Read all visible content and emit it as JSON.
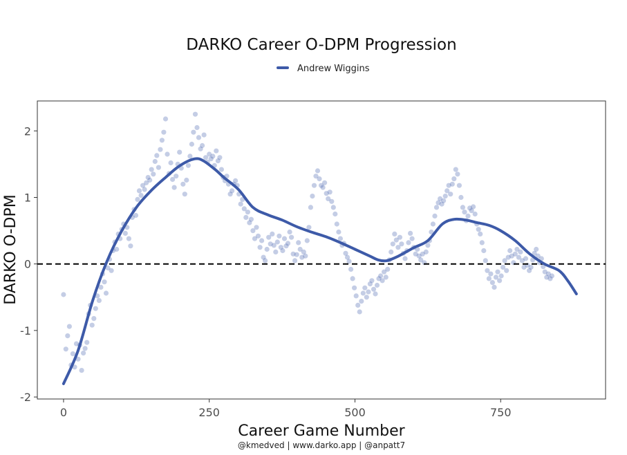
{
  "chart_data": {
    "type": "scatter",
    "title": "DARKO Career O-DPM Progression",
    "xlabel": "Career Game Number",
    "ylabel": "DARKO O-DPM",
    "caption": "@kmedved | www.darko.app | @anpatt7",
    "xlim": [
      -45,
      930
    ],
    "ylim": [
      -2.03,
      2.45
    ],
    "x_ticks": [
      0,
      250,
      500,
      750
    ],
    "x_tick_labels": [
      "0",
      "250",
      "500",
      "750"
    ],
    "y_ticks": [
      -2,
      -1,
      0,
      1,
      2
    ],
    "y_tick_labels": [
      "-2",
      "-1",
      "0",
      "1",
      "2"
    ],
    "reference_line": {
      "y": 0,
      "style": "dashed"
    },
    "grid": false,
    "legend": {
      "placement": "top-center"
    },
    "color": "#3d5aa8",
    "series": [
      {
        "name": "Andrew Wiggins",
        "smooth": [
          [
            0,
            -1.8
          ],
          [
            25,
            -1.3
          ],
          [
            50,
            -0.55
          ],
          [
            75,
            0.05
          ],
          [
            100,
            0.5
          ],
          [
            125,
            0.85
          ],
          [
            150,
            1.1
          ],
          [
            175,
            1.3
          ],
          [
            200,
            1.48
          ],
          [
            225,
            1.58
          ],
          [
            240,
            1.55
          ],
          [
            260,
            1.42
          ],
          [
            275,
            1.3
          ],
          [
            300,
            1.12
          ],
          [
            325,
            0.85
          ],
          [
            350,
            0.74
          ],
          [
            375,
            0.66
          ],
          [
            400,
            0.56
          ],
          [
            425,
            0.48
          ],
          [
            450,
            0.41
          ],
          [
            475,
            0.32
          ],
          [
            500,
            0.22
          ],
          [
            525,
            0.12
          ],
          [
            540,
            0.06
          ],
          [
            555,
            0.05
          ],
          [
            575,
            0.12
          ],
          [
            600,
            0.24
          ],
          [
            625,
            0.35
          ],
          [
            650,
            0.6
          ],
          [
            670,
            0.67
          ],
          [
            690,
            0.66
          ],
          [
            710,
            0.62
          ],
          [
            730,
            0.58
          ],
          [
            750,
            0.5
          ],
          [
            775,
            0.35
          ],
          [
            800,
            0.15
          ],
          [
            825,
            0.0
          ],
          [
            850,
            -0.1
          ],
          [
            865,
            -0.25
          ],
          [
            880,
            -0.45
          ]
        ],
        "points": [
          [
            0,
            -0.46
          ],
          [
            4,
            -1.28
          ],
          [
            7,
            -1.08
          ],
          [
            10,
            -0.94
          ],
          [
            13,
            -1.52
          ],
          [
            16,
            -1.35
          ],
          [
            19,
            -1.55
          ],
          [
            22,
            -1.2
          ],
          [
            25,
            -1.43
          ],
          [
            28,
            -1.22
          ],
          [
            31,
            -1.6
          ],
          [
            34,
            -1.34
          ],
          [
            37,
            -1.27
          ],
          [
            40,
            -1.18
          ],
          [
            43,
            -0.75
          ],
          [
            46,
            -0.62
          ],
          [
            49,
            -0.92
          ],
          [
            52,
            -0.82
          ],
          [
            55,
            -0.67
          ],
          [
            58,
            -0.48
          ],
          [
            61,
            -0.55
          ],
          [
            64,
            -0.35
          ],
          [
            67,
            -0.15
          ],
          [
            70,
            -0.27
          ],
          [
            73,
            -0.44
          ],
          [
            76,
            -0.06
          ],
          [
            79,
            0.07
          ],
          [
            82,
            -0.1
          ],
          [
            85,
            0.2
          ],
          [
            88,
            0.33
          ],
          [
            91,
            0.22
          ],
          [
            94,
            0.45
          ],
          [
            97,
            0.38
          ],
          [
            100,
            0.52
          ],
          [
            103,
            0.6
          ],
          [
            106,
            0.46
          ],
          [
            109,
            0.55
          ],
          [
            112,
            0.38
          ],
          [
            115,
            0.27
          ],
          [
            118,
            0.7
          ],
          [
            121,
            0.82
          ],
          [
            124,
            0.73
          ],
          [
            127,
            0.97
          ],
          [
            130,
            1.1
          ],
          [
            133,
            1.03
          ],
          [
            136,
            1.18
          ],
          [
            139,
            1.12
          ],
          [
            142,
            1.22
          ],
          [
            145,
            1.3
          ],
          [
            148,
            1.26
          ],
          [
            151,
            1.42
          ],
          [
            154,
            1.35
          ],
          [
            157,
            1.54
          ],
          [
            160,
            1.63
          ],
          [
            163,
            1.45
          ],
          [
            166,
            1.72
          ],
          [
            169,
            1.86
          ],
          [
            172,
            1.98
          ],
          [
            175,
            2.18
          ],
          [
            178,
            1.65
          ],
          [
            181,
            1.36
          ],
          [
            184,
            1.52
          ],
          [
            187,
            1.27
          ],
          [
            190,
            1.15
          ],
          [
            193,
            1.32
          ],
          [
            196,
            1.5
          ],
          [
            199,
            1.68
          ],
          [
            202,
            1.44
          ],
          [
            205,
            1.2
          ],
          [
            208,
            1.05
          ],
          [
            211,
            1.26
          ],
          [
            214,
            1.48
          ],
          [
            217,
            1.62
          ],
          [
            220,
            1.8
          ],
          [
            223,
            1.98
          ],
          [
            226,
            2.25
          ],
          [
            229,
            2.05
          ],
          [
            232,
            1.9
          ],
          [
            235,
            1.73
          ],
          [
            238,
            1.78
          ],
          [
            241,
            1.94
          ],
          [
            244,
            1.6
          ],
          [
            247,
            1.53
          ],
          [
            250,
            1.65
          ],
          [
            253,
            1.58
          ],
          [
            256,
            1.62
          ],
          [
            259,
            1.48
          ],
          [
            262,
            1.7
          ],
          [
            265,
            1.55
          ],
          [
            268,
            1.6
          ],
          [
            271,
            1.42
          ],
          [
            274,
            1.3
          ],
          [
            277,
            1.25
          ],
          [
            280,
            1.32
          ],
          [
            283,
            1.2
          ],
          [
            286,
            1.05
          ],
          [
            289,
            1.1
          ],
          [
            292,
            1.2
          ],
          [
            295,
            1.25
          ],
          [
            298,
            1.18
          ],
          [
            301,
            1.05
          ],
          [
            304,
            0.9
          ],
          [
            307,
            0.97
          ],
          [
            310,
            0.83
          ],
          [
            313,
            0.7
          ],
          [
            316,
            0.78
          ],
          [
            319,
            0.62
          ],
          [
            322,
            0.67
          ],
          [
            325,
            0.5
          ],
          [
            328,
            0.38
          ],
          [
            331,
            0.55
          ],
          [
            334,
            0.42
          ],
          [
            337,
            0.25
          ],
          [
            340,
            0.35
          ],
          [
            343,
            0.1
          ],
          [
            346,
            0.05
          ],
          [
            349,
            0.22
          ],
          [
            352,
            0.4
          ],
          [
            355,
            0.3
          ],
          [
            358,
            0.45
          ],
          [
            361,
            0.28
          ],
          [
            364,
            0.18
          ],
          [
            367,
            0.33
          ],
          [
            370,
            0.42
          ],
          [
            373,
            0.25
          ],
          [
            376,
            0.2
          ],
          [
            379,
            0.38
          ],
          [
            382,
            0.27
          ],
          [
            385,
            0.31
          ],
          [
            388,
            0.48
          ],
          [
            391,
            0.4
          ],
          [
            394,
            0.15
          ],
          [
            397,
            0.05
          ],
          [
            400,
            0.14
          ],
          [
            403,
            0.32
          ],
          [
            406,
            0.22
          ],
          [
            409,
            0.1
          ],
          [
            412,
            0.18
          ],
          [
            415,
            0.12
          ],
          [
            418,
            0.35
          ],
          [
            421,
            0.55
          ],
          [
            424,
            0.85
          ],
          [
            427,
            1.02
          ],
          [
            430,
            1.18
          ],
          [
            433,
            1.32
          ],
          [
            436,
            1.4
          ],
          [
            439,
            1.28
          ],
          [
            442,
            1.18
          ],
          [
            445,
            1.15
          ],
          [
            448,
            1.22
          ],
          [
            451,
            1.06
          ],
          [
            454,
            0.98
          ],
          [
            457,
            1.08
          ],
          [
            460,
            0.94
          ],
          [
            463,
            0.85
          ],
          [
            466,
            0.75
          ],
          [
            469,
            0.6
          ],
          [
            472,
            0.48
          ],
          [
            475,
            0.38
          ],
          [
            478,
            0.28
          ],
          [
            481,
            0.31
          ],
          [
            484,
            0.16
          ],
          [
            487,
            0.1
          ],
          [
            490,
            0.04
          ],
          [
            493,
            -0.08
          ],
          [
            496,
            -0.22
          ],
          [
            499,
            -0.36
          ],
          [
            502,
            -0.48
          ],
          [
            505,
            -0.62
          ],
          [
            508,
            -0.72
          ],
          [
            511,
            -0.56
          ],
          [
            514,
            -0.44
          ],
          [
            517,
            -0.36
          ],
          [
            520,
            -0.5
          ],
          [
            523,
            -0.42
          ],
          [
            526,
            -0.3
          ],
          [
            529,
            -0.25
          ],
          [
            532,
            -0.38
          ],
          [
            535,
            -0.45
          ],
          [
            538,
            -0.32
          ],
          [
            541,
            -0.22
          ],
          [
            544,
            -0.18
          ],
          [
            547,
            -0.25
          ],
          [
            550,
            -0.12
          ],
          [
            553,
            -0.2
          ],
          [
            556,
            -0.08
          ],
          [
            559,
            0.06
          ],
          [
            562,
            0.18
          ],
          [
            565,
            0.3
          ],
          [
            568,
            0.45
          ],
          [
            571,
            0.36
          ],
          [
            574,
            0.25
          ],
          [
            577,
            0.4
          ],
          [
            580,
            0.3
          ],
          [
            583,
            0.16
          ],
          [
            586,
            0.08
          ],
          [
            589,
            0.2
          ],
          [
            592,
            0.32
          ],
          [
            595,
            0.46
          ],
          [
            598,
            0.38
          ],
          [
            601,
            0.25
          ],
          [
            604,
            0.15
          ],
          [
            607,
            0.22
          ],
          [
            610,
            0.12
          ],
          [
            613,
            0.06
          ],
          [
            616,
            0.15
          ],
          [
            619,
            0.02
          ],
          [
            622,
            0.18
          ],
          [
            625,
            0.28
          ],
          [
            628,
            0.35
          ],
          [
            631,
            0.48
          ],
          [
            634,
            0.6
          ],
          [
            637,
            0.72
          ],
          [
            640,
            0.85
          ],
          [
            643,
            0.92
          ],
          [
            646,
            0.98
          ],
          [
            649,
            0.9
          ],
          [
            652,
            0.95
          ],
          [
            655,
            1.02
          ],
          [
            658,
            1.1
          ],
          [
            661,
            1.18
          ],
          [
            664,
            1.05
          ],
          [
            667,
            1.2
          ],
          [
            670,
            1.28
          ],
          [
            673,
            1.42
          ],
          [
            676,
            1.35
          ],
          [
            679,
            1.18
          ],
          [
            682,
            1.0
          ],
          [
            685,
            0.85
          ],
          [
            688,
            0.78
          ],
          [
            691,
            0.65
          ],
          [
            694,
            0.72
          ],
          [
            697,
            0.84
          ],
          [
            700,
            0.8
          ],
          [
            703,
            0.86
          ],
          [
            706,
            0.75
          ],
          [
            709,
            0.6
          ],
          [
            712,
            0.52
          ],
          [
            715,
            0.45
          ],
          [
            718,
            0.32
          ],
          [
            721,
            0.2
          ],
          [
            724,
            0.05
          ],
          [
            727,
            -0.1
          ],
          [
            730,
            -0.22
          ],
          [
            733,
            -0.15
          ],
          [
            736,
            -0.28
          ],
          [
            739,
            -0.35
          ],
          [
            742,
            -0.2
          ],
          [
            745,
            -0.12
          ],
          [
            748,
            -0.25
          ],
          [
            751,
            -0.18
          ],
          [
            754,
            -0.05
          ],
          [
            757,
            0.05
          ],
          [
            760,
            -0.1
          ],
          [
            763,
            0.1
          ],
          [
            766,
            0.2
          ],
          [
            769,
            0.12
          ],
          [
            772,
            0.02
          ],
          [
            775,
            0.15
          ],
          [
            778,
            0.22
          ],
          [
            781,
            0.1
          ],
          [
            784,
            0.18
          ],
          [
            787,
            0.05
          ],
          [
            790,
            -0.05
          ],
          [
            793,
            0.08
          ],
          [
            796,
            -0.02
          ],
          [
            799,
            -0.1
          ],
          [
            802,
            -0.05
          ],
          [
            805,
            0.06
          ],
          [
            808,
            0.16
          ],
          [
            811,
            0.22
          ],
          [
            814,
            0.12
          ],
          [
            817,
            0.02
          ],
          [
            820,
            0.08
          ],
          [
            823,
            -0.04
          ],
          [
            826,
            -0.12
          ],
          [
            829,
            -0.2
          ],
          [
            832,
            -0.15
          ],
          [
            835,
            -0.22
          ],
          [
            838,
            -0.18
          ]
        ]
      }
    ]
  }
}
